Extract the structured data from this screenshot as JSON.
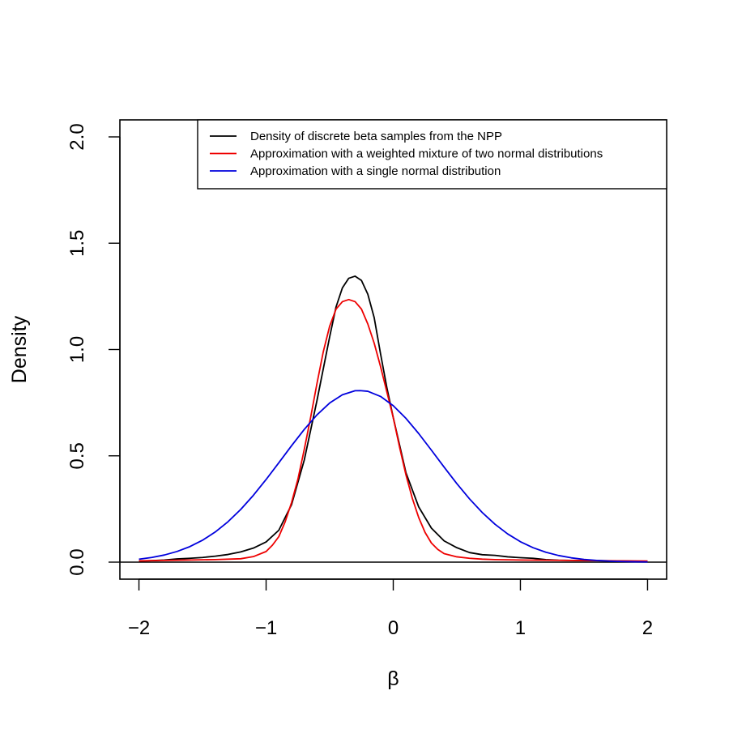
{
  "chart_data": {
    "type": "line",
    "title": "",
    "xlabel": "β",
    "ylabel": "Density",
    "xlim": [
      -2.15,
      2.15
    ],
    "ylim": [
      -0.08,
      2.08
    ],
    "x_ticks": [
      -2,
      -1,
      0,
      1,
      2
    ],
    "x_tick_labels": [
      "−2",
      "−1",
      "0",
      "1",
      "2"
    ],
    "y_ticks": [
      0.0,
      0.5,
      1.0,
      1.5,
      2.0
    ],
    "y_tick_labels": [
      "0.0",
      "0.5",
      "1.0",
      "1.5",
      "2.0"
    ],
    "grid": false,
    "legend_position": "top-right",
    "baseline": 0,
    "series": [
      {
        "name": "Density of discrete beta samples from the NPP",
        "color": "#000000",
        "x": [
          -2.0,
          -1.9,
          -1.8,
          -1.7,
          -1.6,
          -1.5,
          -1.4,
          -1.3,
          -1.2,
          -1.1,
          -1.0,
          -0.9,
          -0.8,
          -0.7,
          -0.6,
          -0.5,
          -0.45,
          -0.4,
          -0.35,
          -0.3,
          -0.25,
          -0.2,
          -0.15,
          -0.1,
          -0.05,
          0.0,
          0.05,
          0.1,
          0.2,
          0.3,
          0.4,
          0.5,
          0.6,
          0.7,
          0.8,
          0.9,
          1.0,
          1.1,
          1.2,
          1.3,
          1.4,
          1.5,
          1.6,
          1.7,
          1.8,
          1.9,
          2.0
        ],
        "values": [
          0.005,
          0.007,
          0.01,
          0.015,
          0.018,
          0.022,
          0.028,
          0.036,
          0.048,
          0.066,
          0.095,
          0.15,
          0.27,
          0.48,
          0.76,
          1.06,
          1.2,
          1.29,
          1.335,
          1.345,
          1.325,
          1.26,
          1.15,
          0.98,
          0.82,
          0.68,
          0.55,
          0.42,
          0.26,
          0.16,
          0.1,
          0.068,
          0.045,
          0.035,
          0.032,
          0.025,
          0.021,
          0.018,
          0.012,
          0.009,
          0.008,
          0.007,
          0.007,
          0.006,
          0.005,
          0.004,
          0.004
        ]
      },
      {
        "name": "Approximation with a weighted mixture of two normal distributions",
        "color": "#ee0000",
        "x": [
          -2.0,
          -1.8,
          -1.6,
          -1.4,
          -1.2,
          -1.1,
          -1.0,
          -0.95,
          -0.9,
          -0.85,
          -0.8,
          -0.75,
          -0.7,
          -0.65,
          -0.6,
          -0.55,
          -0.5,
          -0.45,
          -0.4,
          -0.35,
          -0.3,
          -0.25,
          -0.2,
          -0.15,
          -0.1,
          -0.05,
          0.0,
          0.05,
          0.1,
          0.15,
          0.2,
          0.25,
          0.3,
          0.35,
          0.4,
          0.5,
          0.6,
          0.7,
          0.8,
          0.9,
          1.0,
          1.2,
          1.4,
          1.6,
          1.8,
          2.0
        ],
        "values": [
          0.006,
          0.008,
          0.01,
          0.012,
          0.016,
          0.026,
          0.05,
          0.08,
          0.12,
          0.19,
          0.28,
          0.39,
          0.53,
          0.68,
          0.84,
          0.99,
          1.11,
          1.19,
          1.225,
          1.235,
          1.225,
          1.19,
          1.12,
          1.03,
          0.92,
          0.8,
          0.68,
          0.54,
          0.41,
          0.3,
          0.21,
          0.14,
          0.09,
          0.06,
          0.04,
          0.025,
          0.018,
          0.014,
          0.012,
          0.011,
          0.01,
          0.009,
          0.008,
          0.007,
          0.006,
          0.005
        ]
      },
      {
        "name": "Approximation with a single normal distribution",
        "color": "#0000dd",
        "mean": -0.26,
        "sd": 0.633,
        "x": [
          -2.0,
          -1.9,
          -1.8,
          -1.7,
          -1.6,
          -1.5,
          -1.4,
          -1.3,
          -1.2,
          -1.1,
          -1.0,
          -0.9,
          -0.8,
          -0.7,
          -0.6,
          -0.5,
          -0.4,
          -0.3,
          -0.26,
          -0.2,
          -0.1,
          0.0,
          0.1,
          0.2,
          0.3,
          0.4,
          0.5,
          0.6,
          0.7,
          0.8,
          0.9,
          1.0,
          1.1,
          1.2,
          1.3,
          1.4,
          1.5,
          1.6,
          1.7,
          1.8,
          1.9,
          2.0
        ],
        "values": [
          0.0139,
          0.0219,
          0.0336,
          0.0502,
          0.0729,
          0.103,
          0.1418,
          0.1899,
          0.2477,
          0.3144,
          0.3886,
          0.4674,
          0.5474,
          0.624,
          0.6926,
          0.7484,
          0.7872,
          0.8061,
          0.8067,
          0.8035,
          0.7794,
          0.7358,
          0.6761,
          0.6048,
          0.5267,
          0.4469,
          0.3693,
          0.2974,
          0.2333,
          0.1782,
          0.1326,
          0.0961,
          0.0678,
          0.0466,
          0.0312,
          0.0203,
          0.0129,
          0.008,
          0.0048,
          0.0028,
          0.0016,
          0.0009
        ]
      }
    ]
  }
}
